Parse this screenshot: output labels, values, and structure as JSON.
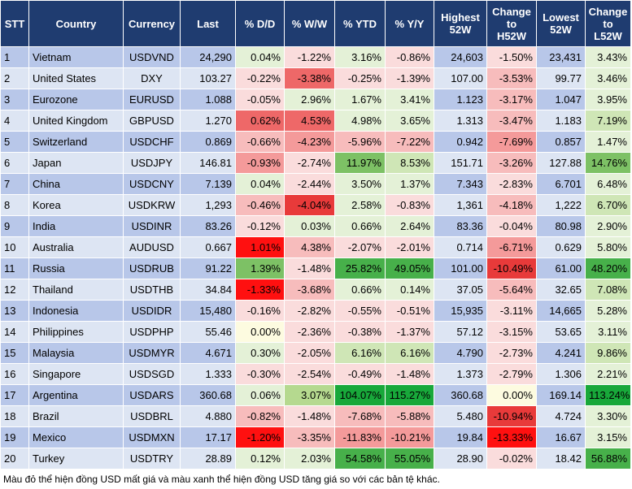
{
  "headers": {
    "stt": "STT",
    "country": "Country",
    "currency": "Currency",
    "last": "Last",
    "dd": "% D/D",
    "ww": "% W/W",
    "ytd": "% YTD",
    "yy": "% Y/Y",
    "h52_l1": "Highest",
    "h52_l2": "52W",
    "ch_l1": "Change",
    "ch_l2": "to",
    "ch_l3": "H52W",
    "l52_l1": "Lowest",
    "l52_l2": "52W",
    "cl_l1": "Change",
    "cl_l2": "to",
    "cl_l3": "L52W"
  },
  "colors": {
    "header_bg": "#1f3c70",
    "row_odd": "#b8c7e9",
    "row_even": "#dde5f3",
    "neg1": "#fadcdc",
    "neg2": "#f7bcbc",
    "neg3": "#f49a9a",
    "neg4": "#ee6868",
    "neg5": "#e83a3a",
    "neg6": "#ff1010",
    "pos1": "#e4f1d7",
    "pos2": "#cfe6b6",
    "pos3": "#b5d98f",
    "pos4": "#7dc165",
    "pos5": "#47b04a",
    "pos6": "#18a83a",
    "neutral": "#fdfbe0"
  },
  "rows": [
    {
      "stt": "1",
      "country": "Vietnam",
      "currency": "USDVND",
      "last": "24,290",
      "dd": "0.04%",
      "ww": "-1.22%",
      "ytd": "3.16%",
      "yy": "-0.86%",
      "h52": "24,603",
      "ch": "-1.50%",
      "l52": "23,431",
      "cl": "3.43%",
      "c_dd": "pos1",
      "c_ww": "neg1",
      "c_ytd": "pos1",
      "c_yy": "neg1",
      "c_ch": "neg1",
      "c_cl": "pos1"
    },
    {
      "stt": "2",
      "country": "United States",
      "currency": "DXY",
      "last": "103.27",
      "dd": "-0.22%",
      "ww": "-3.38%",
      "ytd": "-0.25%",
      "yy": "-1.39%",
      "h52": "107.00",
      "ch": "-3.53%",
      "l52": "99.77",
      "cl": "3.46%",
      "c_dd": "neg1",
      "c_ww": "neg4",
      "c_ytd": "neg1",
      "c_yy": "neg1",
      "c_ch": "neg2",
      "c_cl": "pos1"
    },
    {
      "stt": "3",
      "country": "Eurozone",
      "currency": "EURUSD",
      "last": "1.088",
      "dd": "-0.05%",
      "ww": "2.96%",
      "ytd": "1.67%",
      "yy": "3.41%",
      "h52": "1.123",
      "ch": "-3.17%",
      "l52": "1.047",
      "cl": "3.95%",
      "c_dd": "neg1",
      "c_ww": "pos1",
      "c_ytd": "pos1",
      "c_yy": "pos1",
      "c_ch": "neg2",
      "c_cl": "pos1"
    },
    {
      "stt": "4",
      "country": "United Kingdom",
      "currency": "GBPUSD",
      "last": "1.270",
      "dd": "0.62%",
      "ww": "4.53%",
      "ytd": "4.98%",
      "yy": "3.65%",
      "h52": "1.313",
      "ch": "-3.47%",
      "l52": "1.183",
      "cl": "7.19%",
      "c_dd": "neg4",
      "c_ww": "neg4",
      "c_ytd": "pos1",
      "c_yy": "pos1",
      "c_ch": "neg2",
      "c_cl": "pos2"
    },
    {
      "stt": "5",
      "country": "Switzerland",
      "currency": "USDCHF",
      "last": "0.869",
      "dd": "-0.66%",
      "ww": "-4.23%",
      "ytd": "-5.96%",
      "yy": "-7.22%",
      "h52": "0.942",
      "ch": "-7.69%",
      "l52": "0.857",
      "cl": "1.47%",
      "c_dd": "neg2",
      "c_ww": "neg3",
      "c_ytd": "neg2",
      "c_yy": "neg2",
      "c_ch": "neg3",
      "c_cl": "pos1"
    },
    {
      "stt": "6",
      "country": "Japan",
      "currency": "USDJPY",
      "last": "146.81",
      "dd": "-0.93%",
      "ww": "-2.74%",
      "ytd": "11.97%",
      "yy": "8.53%",
      "h52": "151.71",
      "ch": "-3.26%",
      "l52": "127.88",
      "cl": "14.76%",
      "c_dd": "neg3",
      "c_ww": "neg1",
      "c_ytd": "pos4",
      "c_yy": "pos2",
      "c_ch": "neg2",
      "c_cl": "pos4"
    },
    {
      "stt": "7",
      "country": "China",
      "currency": "USDCNY",
      "last": "7.139",
      "dd": "0.04%",
      "ww": "-2.44%",
      "ytd": "3.50%",
      "yy": "1.37%",
      "h52": "7.343",
      "ch": "-2.83%",
      "l52": "6.701",
      "cl": "6.48%",
      "c_dd": "pos1",
      "c_ww": "neg1",
      "c_ytd": "pos1",
      "c_yy": "pos1",
      "c_ch": "neg1",
      "c_cl": "pos1"
    },
    {
      "stt": "8",
      "country": "Korea",
      "currency": "USDKRW",
      "last": "1,293",
      "dd": "-0.46%",
      "ww": "-4.04%",
      "ytd": "2.58%",
      "yy": "-0.83%",
      "h52": "1,361",
      "ch": "-4.18%",
      "l52": "1,222",
      "cl": "6.70%",
      "c_dd": "neg2",
      "c_ww": "neg5",
      "c_ytd": "pos1",
      "c_yy": "neg1",
      "c_ch": "neg2",
      "c_cl": "pos2"
    },
    {
      "stt": "9",
      "country": "India",
      "currency": "USDINR",
      "last": "83.26",
      "dd": "-0.12%",
      "ww": "0.03%",
      "ytd": "0.66%",
      "yy": "2.64%",
      "h52": "83.36",
      "ch": "-0.04%",
      "l52": "80.98",
      "cl": "2.90%",
      "c_dd": "neg1",
      "c_ww": "pos1",
      "c_ytd": "pos1",
      "c_yy": "pos1",
      "c_ch": "neg1",
      "c_cl": "pos1"
    },
    {
      "stt": "10",
      "country": "Australia",
      "currency": "AUDUSD",
      "last": "0.667",
      "dd": "1.01%",
      "ww": "4.38%",
      "ytd": "-2.07%",
      "yy": "-2.01%",
      "h52": "0.714",
      "ch": "-6.71%",
      "l52": "0.629",
      "cl": "5.80%",
      "c_dd": "neg6",
      "c_ww": "neg2",
      "c_ytd": "neg1",
      "c_yy": "neg1",
      "c_ch": "neg3",
      "c_cl": "pos1"
    },
    {
      "stt": "11",
      "country": "Russia",
      "currency": "USDRUB",
      "last": "91.22",
      "dd": "1.39%",
      "ww": "-1.48%",
      "ytd": "25.82%",
      "yy": "49.05%",
      "h52": "101.00",
      "ch": "-10.49%",
      "l52": "61.00",
      "cl": "48.20%",
      "c_dd": "pos4",
      "c_ww": "neg1",
      "c_ytd": "pos5",
      "c_yy": "pos5",
      "c_ch": "neg5",
      "c_cl": "pos5"
    },
    {
      "stt": "12",
      "country": "Thailand",
      "currency": "USDTHB",
      "last": "34.84",
      "dd": "-1.33%",
      "ww": "-3.68%",
      "ytd": "0.66%",
      "yy": "0.14%",
      "h52": "37.05",
      "ch": "-5.64%",
      "l52": "32.65",
      "cl": "7.08%",
      "c_dd": "neg6",
      "c_ww": "neg2",
      "c_ytd": "pos1",
      "c_yy": "pos1",
      "c_ch": "neg2",
      "c_cl": "pos2"
    },
    {
      "stt": "13",
      "country": "Indonesia",
      "currency": "USDIDR",
      "last": "15,480",
      "dd": "-0.16%",
      "ww": "-2.82%",
      "ytd": "-0.55%",
      "yy": "-0.51%",
      "h52": "15,935",
      "ch": "-3.11%",
      "l52": "14,665",
      "cl": "5.28%",
      "c_dd": "neg1",
      "c_ww": "neg1",
      "c_ytd": "neg1",
      "c_yy": "neg1",
      "c_ch": "neg1",
      "c_cl": "pos1"
    },
    {
      "stt": "14",
      "country": "Philippines",
      "currency": "USDPHP",
      "last": "55.46",
      "dd": "0.00%",
      "ww": "-2.36%",
      "ytd": "-0.38%",
      "yy": "-1.37%",
      "h52": "57.12",
      "ch": "-3.15%",
      "l52": "53.65",
      "cl": "3.11%",
      "c_dd": "neutral",
      "c_ww": "neg1",
      "c_ytd": "neg1",
      "c_yy": "neg1",
      "c_ch": "neg1",
      "c_cl": "pos1"
    },
    {
      "stt": "15",
      "country": "Malaysia",
      "currency": "USDMYR",
      "last": "4.671",
      "dd": "0.30%",
      "ww": "-2.05%",
      "ytd": "6.16%",
      "yy": "6.16%",
      "h52": "4.790",
      "ch": "-2.73%",
      "l52": "4.241",
      "cl": "9.86%",
      "c_dd": "pos1",
      "c_ww": "neg1",
      "c_ytd": "pos2",
      "c_yy": "pos2",
      "c_ch": "neg1",
      "c_cl": "pos2"
    },
    {
      "stt": "16",
      "country": "Singapore",
      "currency": "USDSGD",
      "last": "1.333",
      "dd": "-0.30%",
      "ww": "-2.54%",
      "ytd": "-0.49%",
      "yy": "-1.48%",
      "h52": "1.373",
      "ch": "-2.79%",
      "l52": "1.306",
      "cl": "2.21%",
      "c_dd": "neg1",
      "c_ww": "neg1",
      "c_ytd": "neg1",
      "c_yy": "neg1",
      "c_ch": "neg1",
      "c_cl": "pos1"
    },
    {
      "stt": "17",
      "country": "Argentina",
      "currency": "USDARS",
      "last": "360.68",
      "dd": "0.06%",
      "ww": "3.07%",
      "ytd": "104.07%",
      "yy": "115.27%",
      "h52": "360.68",
      "ch": "0.00%",
      "l52": "169.14",
      "cl": "113.24%",
      "c_dd": "pos1",
      "c_ww": "pos3",
      "c_ytd": "pos6",
      "c_yy": "pos6",
      "c_ch": "neutral",
      "c_cl": "pos6"
    },
    {
      "stt": "18",
      "country": "Brazil",
      "currency": "USDBRL",
      "last": "4.880",
      "dd": "-0.82%",
      "ww": "-1.48%",
      "ytd": "-7.68%",
      "yy": "-5.88%",
      "h52": "5.480",
      "ch": "-10.94%",
      "l52": "4.724",
      "cl": "3.30%",
      "c_dd": "neg2",
      "c_ww": "neg1",
      "c_ytd": "neg2",
      "c_yy": "neg2",
      "c_ch": "neg5",
      "c_cl": "pos1"
    },
    {
      "stt": "19",
      "country": "Mexico",
      "currency": "USDMXN",
      "last": "17.17",
      "dd": "-1.20%",
      "ww": "-3.35%",
      "ytd": "-11.83%",
      "yy": "-10.21%",
      "h52": "19.84",
      "ch": "-13.33%",
      "l52": "16.67",
      "cl": "3.15%",
      "c_dd": "neg6",
      "c_ww": "neg2",
      "c_ytd": "neg3",
      "c_yy": "neg3",
      "c_ch": "neg6",
      "c_cl": "pos1"
    },
    {
      "stt": "20",
      "country": "Turkey",
      "currency": "USDTRY",
      "last": "28.89",
      "dd": "0.12%",
      "ww": "2.03%",
      "ytd": "54.58%",
      "yy": "55.05%",
      "h52": "28.90",
      "ch": "-0.02%",
      "l52": "18.42",
      "cl": "56.88%",
      "c_dd": "pos1",
      "c_ww": "pos1",
      "c_ytd": "pos5",
      "c_yy": "pos5",
      "c_ch": "neg1",
      "c_cl": "pos5"
    }
  ],
  "footnote": "Màu đỏ thể hiện đồng USD mất giá và màu xanh thể hiện đồng USD tăng giá so với các bản tệ khác."
}
